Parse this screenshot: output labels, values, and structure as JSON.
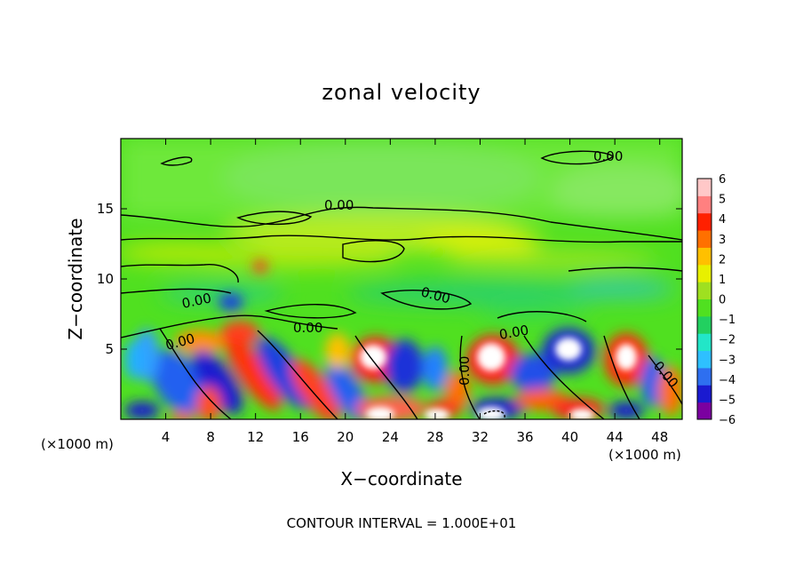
{
  "chart_data": {
    "type": "heatmap",
    "title": "zonal velocity",
    "xlabel": "X−coordinate",
    "ylabel": "Z−coordinate",
    "x_unit": "(×1000 m)",
    "x_unit_right": "(×1000 m)",
    "footer": "CONTOUR INTERVAL = 1.000E+01",
    "xlim": [
      0,
      50
    ],
    "ylim": [
      0,
      20
    ],
    "x_ticks": [
      "4",
      "8",
      "12",
      "16",
      "20",
      "24",
      "28",
      "32",
      "36",
      "40",
      "44",
      "48"
    ],
    "y_ticks": [
      "5",
      "10",
      "15"
    ],
    "colorbar": {
      "ticks": [
        "6",
        "5",
        "4",
        "3",
        "2",
        "1",
        "0",
        "−1",
        "−2",
        "−3",
        "−4",
        "−5",
        "−6"
      ],
      "range": [
        -6,
        6
      ],
      "colors": [
        "#7b00a0",
        "#1a1ad0",
        "#2e6ff0",
        "#2ec0ff",
        "#22e6c8",
        "#22d060",
        "#50e020",
        "#9fe020",
        "#e8f000",
        "#ffc000",
        "#ff7000",
        "#ff2000",
        "#ff8080",
        "#ffc8c8"
      ]
    },
    "contour_labels": [
      "0.00",
      "0.00",
      "0.00",
      "0.00",
      "0.00",
      "0.00",
      "0.00",
      "0.00",
      "0.00"
    ]
  }
}
